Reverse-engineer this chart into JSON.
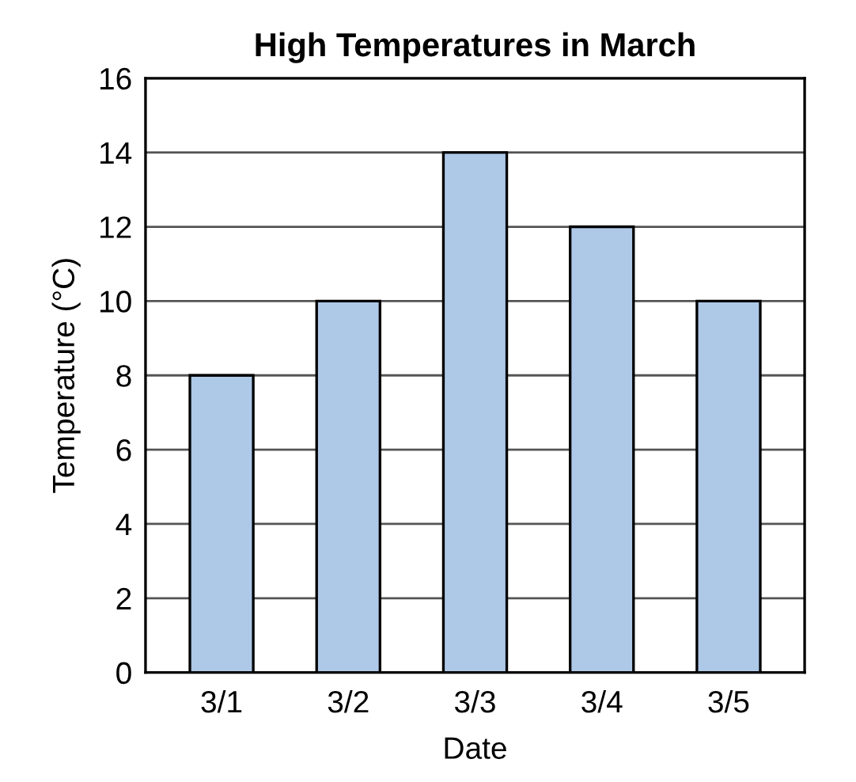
{
  "chart_data": {
    "type": "bar",
    "title": "High Temperatures in March",
    "xlabel": "Date",
    "ylabel": "Temperature (°C)",
    "categories": [
      "3/1",
      "3/2",
      "3/3",
      "3/4",
      "3/5"
    ],
    "values": [
      8,
      10,
      14,
      12,
      10
    ],
    "color": "#aec8e8",
    "ylim": [
      0,
      16
    ],
    "yticks": [
      0,
      2,
      4,
      6,
      8,
      10,
      12,
      14,
      16
    ],
    "grid": "y"
  }
}
